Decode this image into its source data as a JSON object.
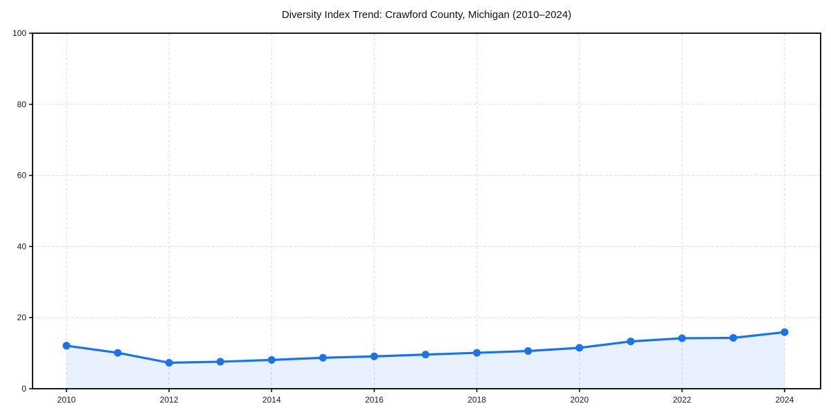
{
  "title": "Diversity Index Trend: Crawford County, Michigan (2010–2024)",
  "chart_data": {
    "type": "area",
    "title": "Diversity Index Trend: Crawford County, Michigan (2010–2024)",
    "x": [
      2010,
      2011,
      2012,
      2013,
      2014,
      2015,
      2016,
      2017,
      2018,
      2019,
      2020,
      2021,
      2022,
      2023,
      2024
    ],
    "values": [
      12.1,
      10.1,
      7.3,
      7.6,
      8.1,
      8.7,
      9.1,
      9.6,
      10.1,
      10.6,
      11.5,
      13.3,
      14.2,
      14.3,
      15.9
    ],
    "xlabel": "",
    "ylabel": "",
    "ylim": [
      0,
      100
    ],
    "y_ticks": [
      0,
      20,
      40,
      60,
      80,
      100
    ],
    "x_ticks": [
      2010,
      2012,
      2014,
      2016,
      2018,
      2020,
      2022,
      2024
    ],
    "grid": "dashed-both-axes",
    "legend": "none",
    "colors": {
      "line": "#1a73e8",
      "marker": "#1a73e8",
      "fill": "#1a73e8",
      "fill_opacity": "0.10",
      "grid": "#dcdcdc",
      "axis_border": "#000000",
      "tick_label": "#1a1a1a",
      "title": "#111111",
      "background": "#ffffff"
    }
  }
}
